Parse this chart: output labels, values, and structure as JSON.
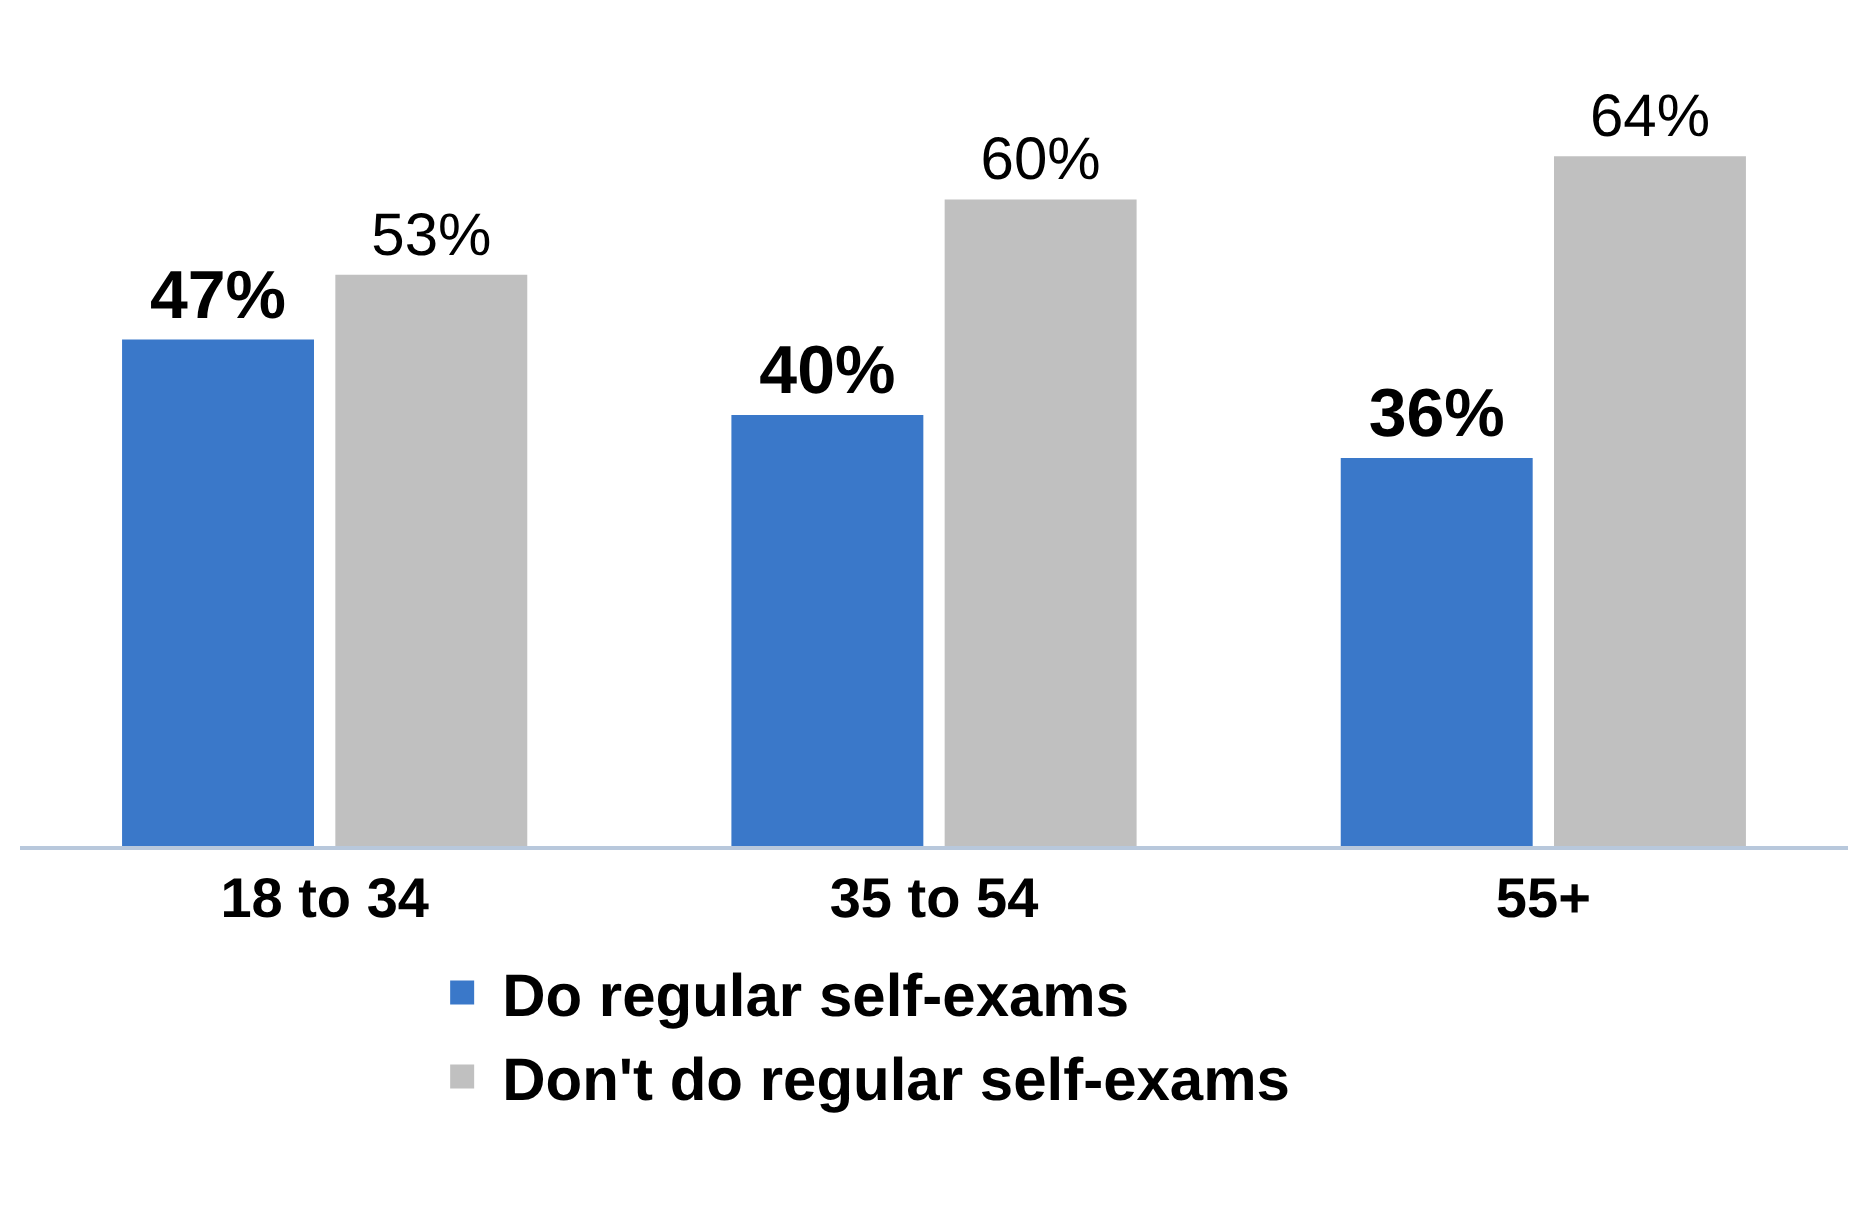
{
  "chart_data": {
    "type": "bar",
    "categories": [
      "18 to 34",
      "35 to 54",
      "55+"
    ],
    "series": [
      {
        "name": "Do regular self-exams",
        "color": "#3a78c9",
        "values": [
          47,
          40,
          36
        ],
        "value_labels": [
          "47%",
          "40%",
          "36%"
        ]
      },
      {
        "name": "Don't do regular self-exams",
        "color": "#c0c0c0",
        "values": [
          53,
          60,
          64
        ],
        "value_labels": [
          "53%",
          "60%",
          "64%"
        ]
      }
    ],
    "legend": "bottom"
  }
}
